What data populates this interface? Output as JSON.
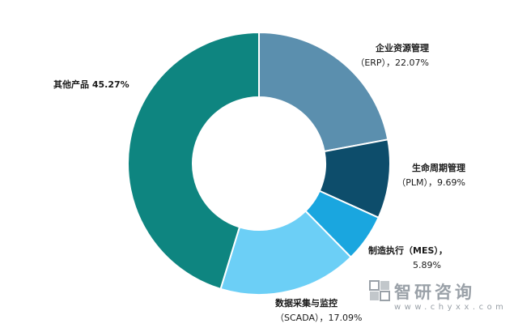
{
  "chart_data": {
    "type": "pie",
    "donut": true,
    "title": "",
    "slices": [
      {
        "name": "企业资源管理（ERP）",
        "value": 22.07,
        "color": "#5b8fae"
      },
      {
        "name": "生命周期管理（PLM）",
        "value": 9.69,
        "color": "#0d4d6b"
      },
      {
        "name": "制造执行（MES）",
        "value": 5.89,
        "color": "#1aa6df"
      },
      {
        "name": "数据采集与监控（SCADA）",
        "value": 17.09,
        "color": "#6ccff6"
      },
      {
        "name": "其他产品",
        "value": 45.27,
        "color": "#0e8580"
      }
    ],
    "labels": {
      "erp_line1": "企业资源管理",
      "erp_line2": "（ERP），22.07%",
      "plm_line1": "生命周期管理",
      "plm_line2": "（PLM），9.69%",
      "mes_line1": "制造执行（MES），",
      "mes_line2": "5.89%",
      "scada_line1": "数据采集与监控",
      "scada_line2": "（SCADA），17.09%",
      "other": "其他产品 45.27%"
    }
  },
  "watermark": {
    "name": "智研咨询",
    "url": "www.chyxx.com"
  }
}
